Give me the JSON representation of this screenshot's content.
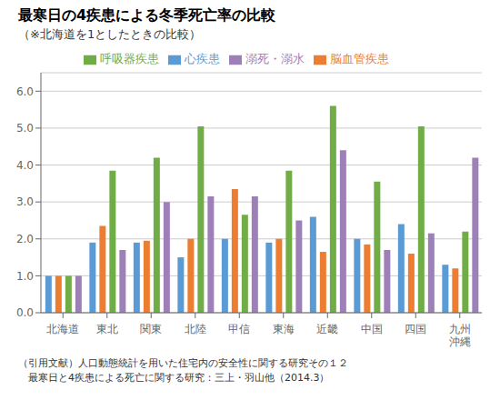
{
  "chart_data": {
    "type": "bar",
    "title": "最寒日の4疾患による冬季死亡率の比較",
    "subtitle": "（※北海道を1としたときの比較）",
    "categories": [
      "北海道",
      "東北",
      "関東",
      "北陸",
      "甲信",
      "東海",
      "近畿",
      "中国",
      "四国",
      "九州\n沖縄"
    ],
    "series": [
      {
        "name": "心疾患",
        "color": "#5B9BD5",
        "values": [
          1.0,
          1.9,
          1.9,
          1.5,
          2.0,
          1.9,
          2.6,
          2.0,
          2.4,
          1.3
        ]
      },
      {
        "name": "脳血管疾患",
        "color": "#ED7D31",
        "values": [
          1.0,
          2.35,
          1.95,
          2.0,
          3.35,
          2.0,
          1.65,
          1.85,
          1.6,
          1.2
        ]
      },
      {
        "name": "呼吸器疾患",
        "color": "#70AD47",
        "values": [
          1.0,
          3.85,
          4.2,
          5.05,
          2.65,
          3.85,
          5.6,
          3.55,
          5.05,
          2.2
        ]
      },
      {
        "name": "溺死・溺水",
        "color": "#9E80B8",
        "values": [
          1.0,
          1.7,
          3.0,
          3.15,
          3.15,
          2.5,
          4.4,
          1.7,
          2.15,
          4.2
        ]
      }
    ],
    "ylim": [
      0,
      6.5
    ],
    "yticks": [
      {
        "value": 0.0,
        "label": "0.0"
      },
      {
        "value": 1.0,
        "label": "1.0"
      },
      {
        "value": 2.0,
        "label": "2.0"
      },
      {
        "value": 3.0,
        "label": "3.0"
      },
      {
        "value": 4.0,
        "label": "4.0"
      },
      {
        "value": 5.0,
        "label": "5.0"
      },
      {
        "value": 6.0,
        "label": "6.0"
      }
    ],
    "grid": true,
    "legend": "top",
    "annotations": [
      "（引用文献）人口動態統計を用いた住宅内の安全性に関する研究その１２",
      "　最寒日と4疾患による死亡に関する研究：三上・羽山他（2014.3）"
    ]
  }
}
